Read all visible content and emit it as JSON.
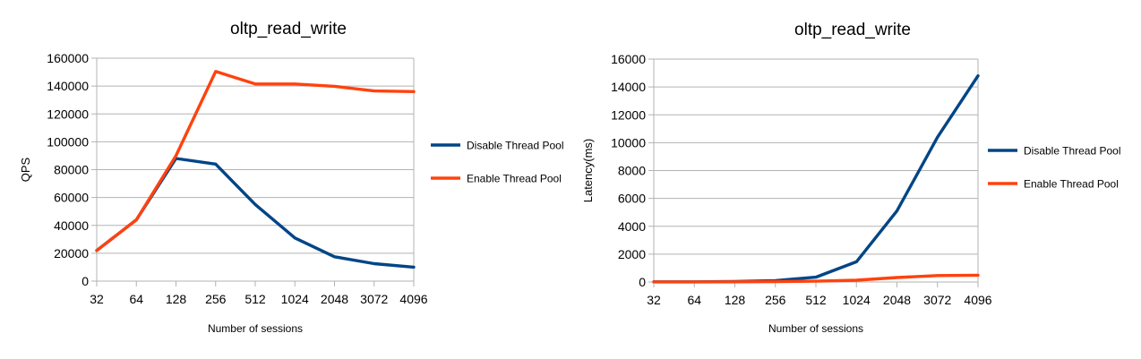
{
  "chart_data": [
    {
      "type": "line",
      "title": "oltp_read_write",
      "xlabel": "Number of sessions",
      "ylabel": "QPS",
      "categories": [
        "32",
        "64",
        "128",
        "256",
        "512",
        "1024",
        "2048",
        "3072",
        "4096"
      ],
      "ylim": [
        0,
        160000
      ],
      "yticks": [
        0,
        20000,
        40000,
        60000,
        80000,
        100000,
        120000,
        140000,
        160000
      ],
      "grid": true,
      "legend_position": "right",
      "series": [
        {
          "name": "Disable Thread Pool",
          "color": "#004586",
          "values": [
            22000,
            44000,
            88000,
            84000,
            55000,
            31000,
            17500,
            12500,
            10000
          ]
        },
        {
          "name": "Enable Thread Pool",
          "color": "#ff420e",
          "values": [
            22000,
            44000,
            90000,
            150500,
            141500,
            141500,
            139800,
            136500,
            136000
          ]
        }
      ]
    },
    {
      "type": "line",
      "title": "oltp_read_write",
      "xlabel": "Number of sessions",
      "ylabel": "Latency(ms)",
      "categories": [
        "32",
        "64",
        "128",
        "256",
        "512",
        "1024",
        "2048",
        "3072",
        "4096"
      ],
      "ylim": [
        0,
        16000
      ],
      "yticks": [
        0,
        2000,
        4000,
        6000,
        8000,
        10000,
        12000,
        14000,
        16000
      ],
      "grid": true,
      "legend_position": "right",
      "series": [
        {
          "name": "Disable Thread Pool",
          "color": "#004586",
          "values": [
            10,
            15,
            30,
            100,
            350,
            1450,
            5100,
            10400,
            14800
          ]
        },
        {
          "name": "Enable Thread Pool",
          "color": "#ff420e",
          "values": [
            5,
            8,
            15,
            30,
            60,
            130,
            320,
            460,
            490
          ]
        }
      ]
    }
  ]
}
